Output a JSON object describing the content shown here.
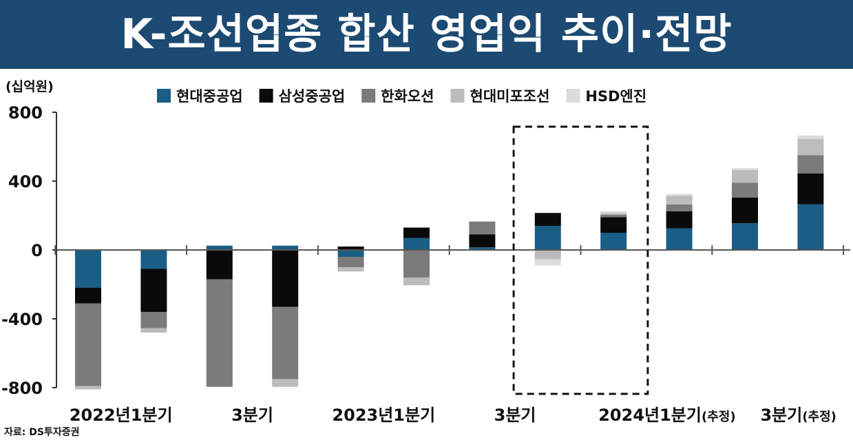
{
  "title": "K-조선업종 합산 영업익 추이·전망",
  "source": "자료: DS투자증권",
  "chart_data": {
    "type": "bar",
    "stacked": true,
    "unit_label": "(십억원)",
    "y_range": [
      -800,
      800
    ],
    "y_ticks": [
      "800",
      "400",
      "0",
      "-400",
      "-800"
    ],
    "y_tick_values": [
      800,
      400,
      0,
      -400,
      -800
    ],
    "highlight_box": {
      "from_index": 7,
      "to_index": 8,
      "style": "dashed"
    },
    "categories": [
      "2022년1분기",
      "",
      "3분기",
      "",
      "2023년1분기",
      "",
      "3분기",
      "",
      "2024년1분기",
      "(추정)",
      "3분기",
      "(추정)"
    ],
    "x_tick_labels": [
      {
        "main": "2022년1분기",
        "suffix": "",
        "at_index": 0.5
      },
      {
        "main": "3분기",
        "suffix": "",
        "at_index": 2.5
      },
      {
        "main": "2023년1분기",
        "suffix": "",
        "at_index": 4.5
      },
      {
        "main": "3분기",
        "suffix": "",
        "at_index": 6.5
      },
      {
        "main": "2024년1분기",
        "suffix": "(추정)",
        "at_index": 8.5
      },
      {
        "main": "3분기",
        "suffix": "(추정)",
        "at_index": 10.5
      }
    ],
    "series": [
      {
        "name": "현대중공업",
        "color": "#1b5e85",
        "values": [
          -220,
          -110,
          25,
          25,
          -40,
          70,
          15,
          140,
          100,
          125,
          155,
          265
        ]
      },
      {
        "name": "삼성중공업",
        "color": "#0a0a0a",
        "values": [
          -90,
          -250,
          -170,
          -330,
          20,
          60,
          75,
          75,
          90,
          100,
          150,
          180
        ]
      },
      {
        "name": "한화오션",
        "color": "#7b7b7b",
        "values": [
          -480,
          -95,
          -625,
          -420,
          -60,
          -160,
          75,
          0,
          15,
          40,
          85,
          105
        ]
      },
      {
        "name": "현대미포조선",
        "color": "#bcbcbc",
        "values": [
          -20,
          -25,
          0,
          -45,
          -25,
          -45,
          0,
          -55,
          10,
          50,
          75,
          95
        ]
      },
      {
        "name": "HSD엔진",
        "color": "#dcdcdc",
        "values": [
          0,
          0,
          0,
          0,
          0,
          0,
          0,
          -35,
          10,
          10,
          10,
          20
        ]
      }
    ]
  }
}
